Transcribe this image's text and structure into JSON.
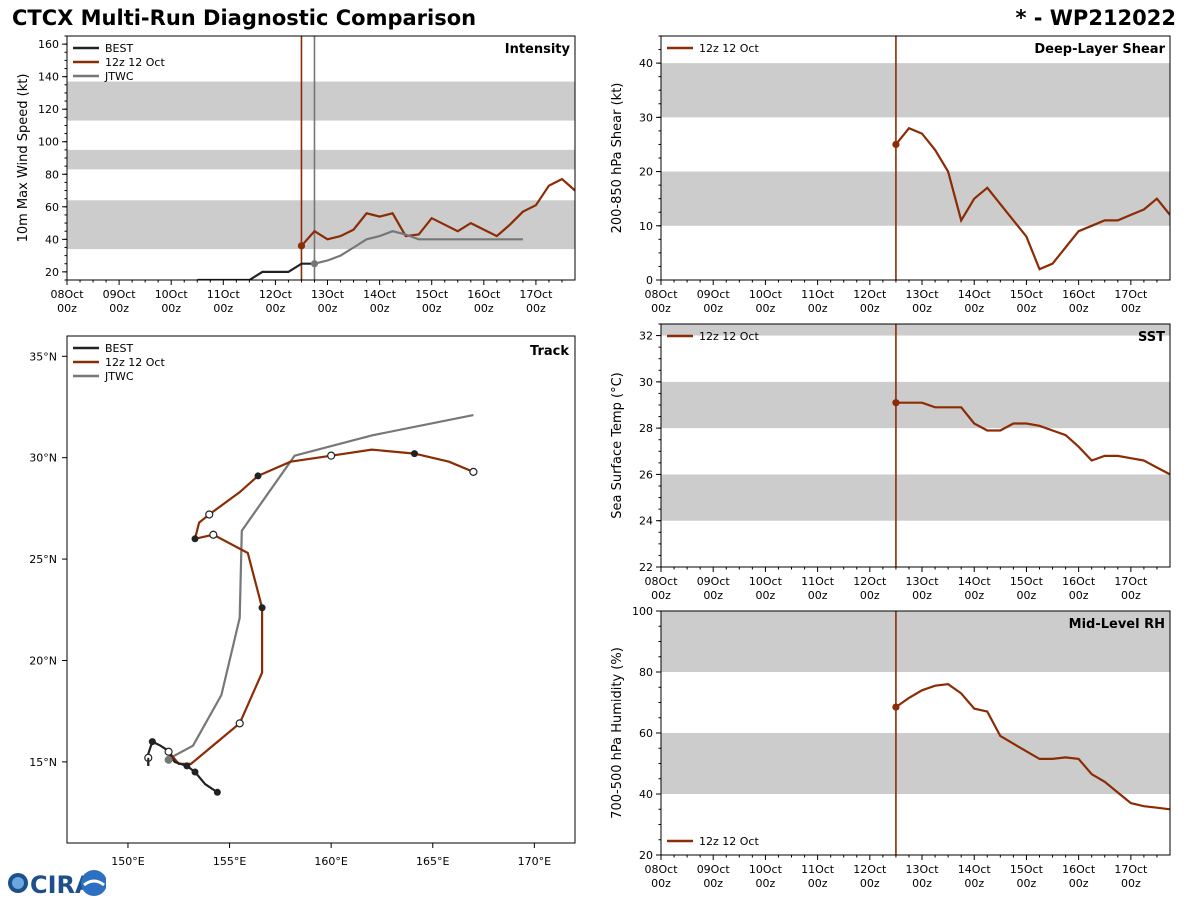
{
  "header": {
    "title": "CTCX Multi-Run Diagnostic Comparison",
    "storm": "* - WP212022"
  },
  "colors": {
    "best": "#222222",
    "run": "#8b2c04",
    "jtwc": "#777777",
    "band": "#cccccc"
  },
  "logo": {
    "text": "CIRA",
    "icon": "cira-globe-icon"
  },
  "time_axis": {
    "labels": [
      [
        "08Oct",
        "00z"
      ],
      [
        "09Oct",
        "00z"
      ],
      [
        "10Oct",
        "00z"
      ],
      [
        "11Oct",
        "00z"
      ],
      [
        "12Oct",
        "00z"
      ],
      [
        "13Oct",
        "00z"
      ],
      [
        "14Oct",
        "00z"
      ],
      [
        "15Oct",
        "00z"
      ],
      [
        "16Oct",
        "00z"
      ],
      [
        "17Oct",
        "00z"
      ]
    ],
    "range_days": [
      0,
      9.75
    ],
    "run_time_day": 4.5
  },
  "chart_data": [
    {
      "id": "intensity",
      "type": "line",
      "title": "Intensity",
      "ylabel": "10m Max Wind Speed (kt)",
      "ylim": [
        15,
        165
      ],
      "yticks": [
        20,
        40,
        60,
        80,
        100,
        120,
        140,
        160
      ],
      "bands": [
        [
          34,
          64
        ],
        [
          83,
          95
        ],
        [
          113,
          137
        ]
      ],
      "legend": [
        "BEST",
        "12z 12 Oct",
        "JTWC"
      ],
      "markers": {
        "run_start": [
          4.5,
          36
        ],
        "jtwc_start": [
          4.75,
          25
        ]
      },
      "vlines": [
        {
          "series": "run",
          "x": 4.5
        },
        {
          "series": "jtwc",
          "x": 4.75
        }
      ],
      "series": [
        {
          "name": "BEST",
          "key": "best",
          "x": [
            2.5,
            3.5,
            3.75,
            4.0,
            4.25,
            4.5,
            4.75
          ],
          "y": [
            15,
            15,
            20,
            20,
            20,
            25,
            25
          ]
        },
        {
          "name": "12z 12 Oct",
          "key": "run",
          "x": [
            4.5,
            4.75,
            5.0,
            5.25,
            5.5,
            5.75,
            6.0,
            6.25,
            6.5,
            6.75,
            7.0,
            7.25,
            7.5,
            7.75,
            8.0,
            8.25,
            8.5,
            8.75,
            9.0,
            9.25,
            9.5,
            9.75
          ],
          "y": [
            36,
            45,
            40,
            42,
            46,
            56,
            54,
            56,
            42,
            43,
            53,
            49,
            45,
            50,
            46,
            42,
            49,
            57,
            61,
            73,
            77,
            70
          ]
        },
        {
          "name": "JTWC",
          "key": "jtwc",
          "x": [
            4.75,
            5.0,
            5.25,
            5.5,
            5.75,
            6.0,
            6.25,
            6.5,
            6.75,
            7.0,
            7.5,
            8.0,
            8.5,
            8.75
          ],
          "y": [
            25,
            27,
            30,
            35,
            40,
            42,
            45,
            43,
            40,
            40,
            40,
            40,
            40,
            40
          ]
        }
      ]
    },
    {
      "id": "shear",
      "type": "line",
      "title": "Deep-Layer Shear",
      "ylabel": "200-850 hPa Shear (kt)",
      "ylim": [
        0,
        45
      ],
      "yticks": [
        0,
        10,
        20,
        30,
        40
      ],
      "bands": [
        [
          10,
          20
        ],
        [
          30,
          40
        ]
      ],
      "legend": [
        "12z 12 Oct"
      ],
      "markers": {
        "run_start": [
          4.5,
          25
        ]
      },
      "series": [
        {
          "name": "12z 12 Oct",
          "key": "run",
          "x": [
            4.5,
            4.75,
            5.0,
            5.25,
            5.5,
            5.75,
            6.0,
            6.25,
            6.5,
            6.75,
            7.0,
            7.25,
            7.5,
            8.0,
            8.25,
            8.5,
            8.75,
            9.0,
            9.25,
            9.5,
            9.75
          ],
          "y": [
            25,
            28,
            27,
            24,
            20,
            11,
            15,
            17,
            14,
            11,
            8,
            2,
            3,
            9,
            10,
            11,
            11,
            12,
            13,
            15,
            12
          ]
        }
      ]
    },
    {
      "id": "sst",
      "type": "line",
      "title": "SST",
      "ylabel": "Sea Surface Temp (°C)",
      "ylim": [
        22,
        32.5
      ],
      "yticks": [
        22,
        24,
        26,
        28,
        30,
        32
      ],
      "bands": [
        [
          24,
          26
        ],
        [
          28,
          30
        ],
        [
          32,
          32.5
        ]
      ],
      "legend": [
        "12z 12 Oct"
      ],
      "markers": {
        "run_start": [
          4.5,
          29.1
        ]
      },
      "series": [
        {
          "name": "12z 12 Oct",
          "key": "run",
          "x": [
            4.5,
            4.75,
            5.0,
            5.25,
            5.5,
            5.75,
            6.0,
            6.25,
            6.5,
            6.75,
            7.0,
            7.25,
            7.5,
            7.75,
            8.0,
            8.25,
            8.5,
            8.75,
            9.0,
            9.25,
            9.5,
            9.75
          ],
          "y": [
            29.1,
            29.1,
            29.1,
            28.9,
            28.9,
            28.9,
            28.2,
            27.9,
            27.9,
            28.2,
            28.2,
            28.1,
            27.9,
            27.7,
            27.2,
            26.6,
            26.8,
            26.8,
            26.7,
            26.6,
            26.3,
            26.0
          ]
        }
      ]
    },
    {
      "id": "rh",
      "type": "line",
      "title": "Mid-Level RH",
      "ylabel": "700-500 hPa Humidity (%)",
      "ylim": [
        20,
        100
      ],
      "yticks": [
        20,
        40,
        60,
        80,
        100
      ],
      "bands": [
        [
          40,
          60
        ],
        [
          80,
          100
        ]
      ],
      "legend": [
        "12z 12 Oct"
      ],
      "markers": {
        "run_start": [
          4.5,
          68.5
        ]
      },
      "series": [
        {
          "name": "12z 12 Oct",
          "key": "run",
          "x": [
            4.5,
            4.75,
            5.0,
            5.25,
            5.5,
            5.75,
            6.0,
            6.25,
            6.5,
            6.75,
            7.0,
            7.25,
            7.5,
            7.75,
            8.0,
            8.25,
            8.5,
            8.75,
            9.0,
            9.25,
            9.5,
            9.75
          ],
          "y": [
            68.5,
            71.5,
            74,
            75.5,
            76,
            73,
            68,
            67,
            59,
            56.5,
            54,
            51.5,
            51.5,
            52,
            51.5,
            46.5,
            44,
            40.5,
            37,
            36,
            35.5,
            35
          ]
        }
      ]
    },
    {
      "id": "track",
      "type": "line",
      "title": "Track",
      "xlim": [
        147,
        172
      ],
      "ylim": [
        11,
        36
      ],
      "xticks": [
        150,
        155,
        160,
        165,
        170
      ],
      "yticks": [
        15,
        20,
        25,
        30,
        35
      ],
      "xticklabels": [
        "150°E",
        "155°E",
        "160°E",
        "165°E",
        "170°E"
      ],
      "yticklabels": [
        "15°N",
        "20°N",
        "25°N",
        "30°N",
        "35°N"
      ],
      "legend": [
        "BEST",
        "12z 12 Oct",
        "JTWC"
      ],
      "series": [
        {
          "name": "BEST",
          "key": "best",
          "lon": [
            154.4,
            153.8,
            153.3,
            152.9,
            152.3,
            151.9,
            151.6,
            151.2,
            151.0,
            151.0
          ],
          "lat": [
            13.5,
            13.9,
            14.5,
            14.8,
            15.0,
            15.6,
            15.8,
            16.0,
            15.4,
            14.8
          ],
          "dots": [
            [
              154.4,
              13.5,
              "filled"
            ],
            [
              153.3,
              14.5,
              "filled"
            ],
            [
              152.9,
              14.8,
              "filled"
            ],
            [
              151.2,
              16.0,
              "filled"
            ]
          ]
        },
        {
          "name": "12z 12 Oct",
          "key": "run",
          "lon": [
            152.0,
            152.5,
            153.1,
            154.3,
            155.5,
            156.6,
            156.6,
            155.9,
            154.2,
            153.3,
            153.5,
            154.0,
            155.5,
            156.4,
            158.0,
            160.0,
            162.0,
            164.1,
            165.8,
            167.0
          ],
          "lat": [
            15.5,
            14.9,
            14.9,
            15.9,
            16.9,
            19.4,
            22.6,
            25.3,
            26.2,
            26.0,
            26.8,
            27.2,
            28.3,
            29.1,
            29.8,
            30.1,
            30.4,
            30.2,
            29.8,
            29.3
          ],
          "dots": [
            [
              152.0,
              15.5,
              "open"
            ],
            [
              155.5,
              16.9,
              "open"
            ],
            [
              156.6,
              22.6,
              "filled"
            ],
            [
              154.2,
              26.2,
              "open"
            ],
            [
              153.3,
              26.0,
              "filled"
            ],
            [
              154.0,
              27.2,
              "open"
            ],
            [
              156.4,
              29.1,
              "filled"
            ],
            [
              160.0,
              30.1,
              "open"
            ],
            [
              164.1,
              30.2,
              "filled"
            ],
            [
              167.0,
              29.3,
              "open"
            ]
          ]
        },
        {
          "name": "JTWC",
          "key": "jtwc",
          "lon": [
            151.9,
            153.2,
            154.6,
            155.5,
            155.6,
            158.2,
            162.0,
            167.0
          ],
          "lat": [
            15.1,
            15.8,
            18.3,
            22.1,
            26.4,
            30.1,
            31.1,
            32.1
          ],
          "dots": [
            [
              152.0,
              15.1,
              "gray"
            ],
            [
              151.0,
              15.2,
              "open"
            ]
          ]
        }
      ]
    }
  ]
}
